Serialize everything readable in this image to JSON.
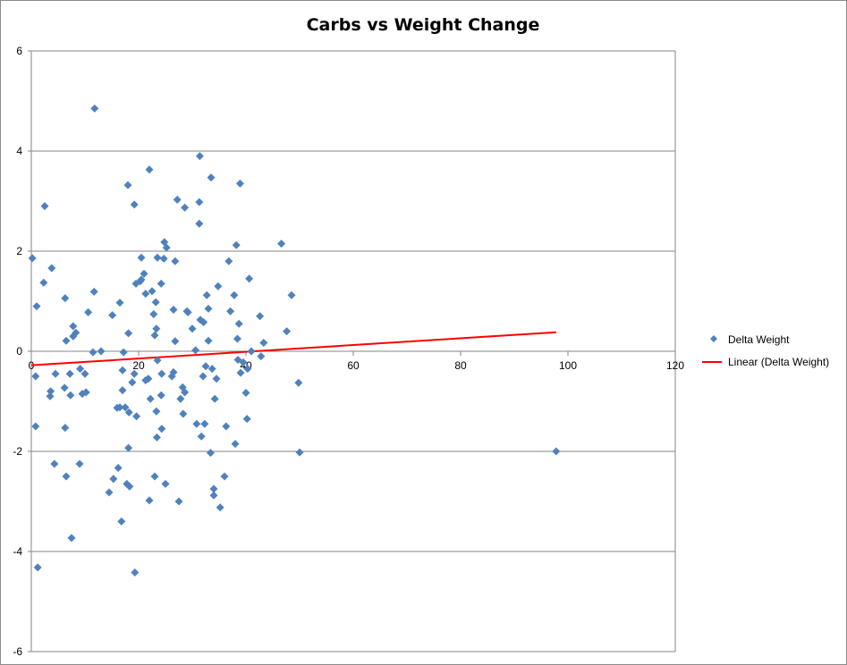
{
  "chart_data": {
    "type": "scatter",
    "title": "Carbs vs Weight Change",
    "xlabel": "",
    "ylabel": "",
    "xlim": [
      0,
      120
    ],
    "ylim": [
      -6,
      6
    ],
    "xticks": [
      0,
      20,
      40,
      60,
      80,
      100,
      120
    ],
    "yticks": [
      -6,
      -4,
      -2,
      0,
      2,
      4,
      6
    ],
    "grid": "horizontal major gridlines",
    "legend_position": "right",
    "series": [
      {
        "name": "Delta Weight",
        "marker": "diamond",
        "color": "#4F81BD",
        "points": [
          [
            0.2,
            1.86
          ],
          [
            0.8,
            -0.5
          ],
          [
            0.8,
            -1.5
          ],
          [
            1.0,
            0.9
          ],
          [
            1.2,
            -4.32
          ],
          [
            2.3,
            1.37
          ],
          [
            2.5,
            2.9
          ],
          [
            3.5,
            -0.9
          ],
          [
            3.6,
            -0.8
          ],
          [
            3.8,
            1.66
          ],
          [
            4.3,
            -2.25
          ],
          [
            4.5,
            -0.45
          ],
          [
            6.2,
            -0.73
          ],
          [
            6.3,
            -1.53
          ],
          [
            6.3,
            1.06
          ],
          [
            6.5,
            -2.5
          ],
          [
            6.5,
            0.21
          ],
          [
            7.2,
            -0.45
          ],
          [
            7.3,
            -0.88
          ],
          [
            7.5,
            -3.73
          ],
          [
            7.8,
            0.3
          ],
          [
            7.8,
            0.5
          ],
          [
            8.3,
            0.37
          ],
          [
            9.0,
            -2.25
          ],
          [
            9.1,
            -0.35
          ],
          [
            9.5,
            -0.85
          ],
          [
            10.0,
            -0.45
          ],
          [
            10.2,
            -0.82
          ],
          [
            10.6,
            0.78
          ],
          [
            11.5,
            -0.02
          ],
          [
            11.7,
            1.19
          ],
          [
            11.8,
            4.85
          ],
          [
            13.0,
            0.0
          ],
          [
            14.5,
            -2.82
          ],
          [
            15.1,
            0.72
          ],
          [
            15.3,
            -2.55
          ],
          [
            16.0,
            -1.13
          ],
          [
            16.2,
            -2.33
          ],
          [
            16.5,
            0.97
          ],
          [
            16.5,
            -1.12
          ],
          [
            16.8,
            -3.4
          ],
          [
            17.0,
            -0.78
          ],
          [
            17.0,
            -0.38
          ],
          [
            17.2,
            -0.02
          ],
          [
            17.5,
            -1.12
          ],
          [
            17.8,
            -2.65
          ],
          [
            18.1,
            -1.93
          ],
          [
            18.0,
            3.32
          ],
          [
            18.1,
            0.36
          ],
          [
            18.2,
            -1.22
          ],
          [
            18.3,
            -2.7
          ],
          [
            18.8,
            -0.62
          ],
          [
            19.2,
            -0.45
          ],
          [
            19.2,
            2.93
          ],
          [
            19.3,
            -4.42
          ],
          [
            19.5,
            1.35
          ],
          [
            19.6,
            -1.3
          ],
          [
            20.3,
            1.4
          ],
          [
            20.5,
            1.43
          ],
          [
            20.5,
            1.87
          ],
          [
            21.0,
            1.55
          ],
          [
            21.3,
            -0.58
          ],
          [
            21.3,
            1.15
          ],
          [
            21.8,
            -0.55
          ],
          [
            22.0,
            3.63
          ],
          [
            22.0,
            -2.98
          ],
          [
            22.2,
            -0.95
          ],
          [
            22.5,
            1.2
          ],
          [
            22.8,
            0.74
          ],
          [
            23.0,
            -2.5
          ],
          [
            23.0,
            0.32
          ],
          [
            23.2,
            0.98
          ],
          [
            23.3,
            0.45
          ],
          [
            23.3,
            -1.2
          ],
          [
            23.4,
            -1.72
          ],
          [
            23.5,
            -0.18
          ],
          [
            23.5,
            1.87
          ],
          [
            24.2,
            -0.88
          ],
          [
            24.2,
            1.35
          ],
          [
            24.3,
            -0.45
          ],
          [
            24.3,
            -1.55
          ],
          [
            24.7,
            1.85
          ],
          [
            24.8,
            2.18
          ],
          [
            25.0,
            -2.65
          ],
          [
            25.2,
            2.07
          ],
          [
            26.2,
            -0.5
          ],
          [
            26.5,
            0.83
          ],
          [
            26.5,
            -0.42
          ],
          [
            26.8,
            1.8
          ],
          [
            26.8,
            0.2
          ],
          [
            27.2,
            3.03
          ],
          [
            27.5,
            -3.0
          ],
          [
            27.8,
            -0.95
          ],
          [
            28.2,
            -0.72
          ],
          [
            28.3,
            -1.25
          ],
          [
            28.6,
            2.87
          ],
          [
            28.6,
            -0.82
          ],
          [
            29.0,
            0.8
          ],
          [
            29.2,
            0.78
          ],
          [
            30.0,
            0.45
          ],
          [
            30.6,
            0.02
          ],
          [
            30.8,
            -1.45
          ],
          [
            31.3,
            2.55
          ],
          [
            31.3,
            2.98
          ],
          [
            31.4,
            3.9
          ],
          [
            31.5,
            0.63
          ],
          [
            31.7,
            -1.7
          ],
          [
            32.0,
            -0.5
          ],
          [
            32.1,
            0.58
          ],
          [
            32.3,
            -1.45
          ],
          [
            32.5,
            -0.3
          ],
          [
            32.7,
            1.12
          ],
          [
            33.0,
            0.85
          ],
          [
            33.0,
            0.21
          ],
          [
            33.4,
            -2.03
          ],
          [
            33.5,
            3.47
          ],
          [
            33.7,
            -0.35
          ],
          [
            34.0,
            -2.88
          ],
          [
            34.0,
            -2.75
          ],
          [
            34.2,
            -0.95
          ],
          [
            34.5,
            -0.55
          ],
          [
            34.8,
            1.3
          ],
          [
            35.2,
            -3.12
          ],
          [
            36.0,
            -2.5
          ],
          [
            36.3,
            -1.5
          ],
          [
            36.8,
            1.8
          ],
          [
            37.1,
            0.8
          ],
          [
            37.8,
            1.12
          ],
          [
            38.0,
            -1.85
          ],
          [
            38.2,
            2.12
          ],
          [
            38.4,
            0.25
          ],
          [
            38.5,
            -0.17
          ],
          [
            38.7,
            0.55
          ],
          [
            38.9,
            3.35
          ],
          [
            39.0,
            -0.43
          ],
          [
            39.5,
            -0.22
          ],
          [
            40.0,
            -0.83
          ],
          [
            40.2,
            -1.35
          ],
          [
            40.3,
            -0.35
          ],
          [
            40.6,
            1.45
          ],
          [
            41.0,
            0.0
          ],
          [
            42.6,
            0.7
          ],
          [
            42.8,
            -0.1
          ],
          [
            43.3,
            0.17
          ],
          [
            46.6,
            2.15
          ],
          [
            47.6,
            0.4
          ],
          [
            48.5,
            1.12
          ],
          [
            49.8,
            -0.63
          ],
          [
            50.0,
            -2.02
          ],
          [
            97.8,
            -2.0
          ]
        ]
      }
    ],
    "trendline": {
      "name": "Linear (Delta Weight)",
      "type": "linear",
      "color": "#FF0000",
      "x_range": [
        0,
        97.8
      ],
      "y_at_start": -0.28,
      "y_at_end": 0.38
    }
  }
}
